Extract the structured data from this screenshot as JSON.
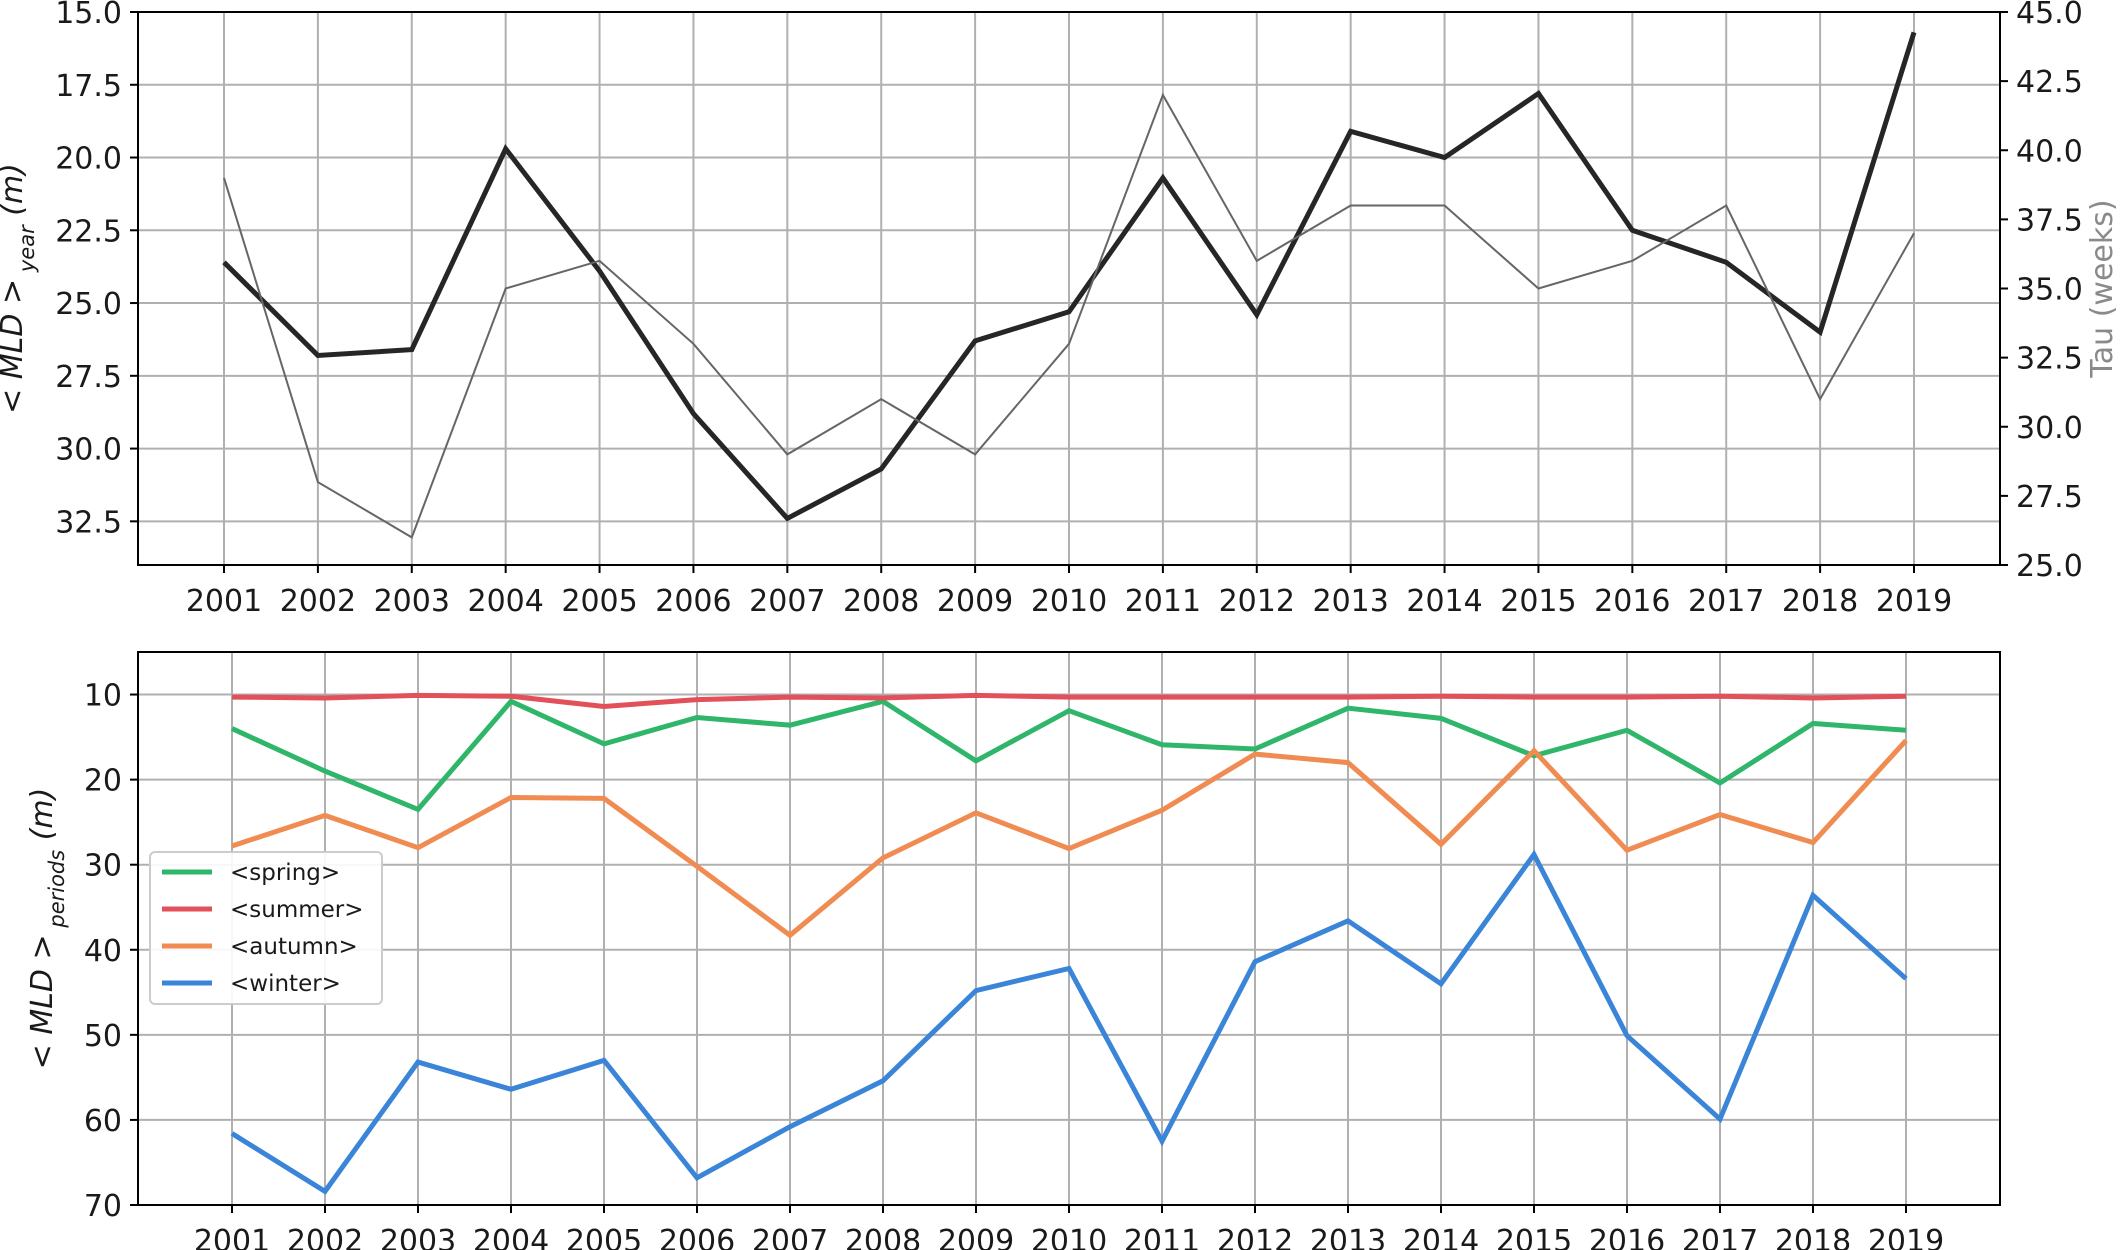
{
  "chart_data": [
    {
      "type": "line",
      "ylabel": "< MLD >",
      "ylabel_sub": "year",
      "ylabel_unit": "(m)",
      "ylabel_right": "Tau (weeks)",
      "categories": [
        "2001",
        "2002",
        "2003",
        "2004",
        "2005",
        "2006",
        "2007",
        "2008",
        "2009",
        "2010",
        "2011",
        "2012",
        "2013",
        "2014",
        "2015",
        "2016",
        "2017",
        "2018",
        "2019"
      ],
      "ylim_left": [
        15.0,
        34.0
      ],
      "ylim_left_inverted": true,
      "yticks_left": [
        "15.0",
        "17.5",
        "20.0",
        "22.5",
        "25.0",
        "27.5",
        "30.0",
        "32.5"
      ],
      "ylim_right": [
        25.0,
        45.0
      ],
      "yticks_right": [
        "25.0",
        "27.5",
        "30.0",
        "32.5",
        "35.0",
        "37.5",
        "40.0",
        "42.5",
        "45.0"
      ],
      "grid": true,
      "series": [
        {
          "axis": "left",
          "color": "#262626",
          "values": [
            23.6,
            26.8,
            26.6,
            19.7,
            23.9,
            28.8,
            32.4,
            30.7,
            26.3,
            25.3,
            20.7,
            25.4,
            19.1,
            20.0,
            17.8,
            22.5,
            23.6,
            26.0,
            15.7
          ]
        },
        {
          "axis": "right",
          "color": "#666666",
          "values": [
            39,
            28,
            26,
            35,
            36,
            33,
            29,
            31,
            29,
            33,
            42,
            36,
            38,
            38,
            35,
            36,
            38,
            31,
            37
          ]
        }
      ]
    },
    {
      "type": "line",
      "ylabel": "< MLD >",
      "ylabel_sub": "periods",
      "ylabel_unit": "(m)",
      "categories": [
        "2001",
        "2002",
        "2003",
        "2004",
        "2005",
        "2006",
        "2007",
        "2008",
        "2009",
        "2010",
        "2011",
        "2012",
        "2013",
        "2014",
        "2015",
        "2016",
        "2017",
        "2018",
        "2019"
      ],
      "ylim": [
        5,
        70
      ],
      "ylim_inverted": true,
      "yticks": [
        "10",
        "20",
        "30",
        "40",
        "50",
        "60",
        "70"
      ],
      "grid": true,
      "legend_placement": "center-left",
      "series": [
        {
          "name": "<spring>",
          "color": "#2fb66a",
          "values": [
            14.0,
            19.0,
            23.5,
            10.8,
            15.8,
            12.7,
            13.6,
            10.8,
            17.8,
            11.9,
            15.9,
            16.4,
            11.6,
            12.8,
            17.2,
            14.2,
            20.4,
            13.4,
            14.2
          ]
        },
        {
          "name": "<summer>",
          "color": "#e2505a",
          "values": [
            10.3,
            10.4,
            10.1,
            10.2,
            11.4,
            10.6,
            10.3,
            10.4,
            10.1,
            10.3,
            10.3,
            10.3,
            10.3,
            10.2,
            10.3,
            10.3,
            10.2,
            10.4,
            10.2
          ]
        },
        {
          "name": "<autumn>",
          "color": "#f08c52",
          "values": [
            27.8,
            24.2,
            28.0,
            22.1,
            22.2,
            30.2,
            38.3,
            29.2,
            23.9,
            28.1,
            23.6,
            17.0,
            18.0,
            27.6,
            16.6,
            28.3,
            24.1,
            27.4,
            15.4
          ]
        },
        {
          "name": "<winter>",
          "color": "#3a85d8",
          "values": [
            61.6,
            68.4,
            53.2,
            56.4,
            53.0,
            66.8,
            60.8,
            55.4,
            44.8,
            42.2,
            62.5,
            41.4,
            36.6,
            44.0,
            28.8,
            50.1,
            59.9,
            33.6,
            43.4
          ]
        }
      ]
    }
  ]
}
